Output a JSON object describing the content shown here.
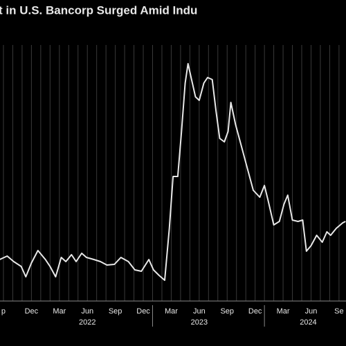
{
  "chart_data": {
    "type": "line",
    "title": "t in U.S. Bancorp Surged Amid Indu",
    "color": "#e8e8e8",
    "grid": true,
    "x": [
      -0.4,
      0.4,
      1.1,
      1.9,
      2.4,
      3.0,
      3.7,
      4.5,
      5.0,
      5.6,
      6.2,
      6.7,
      7.3,
      7.8,
      8.4,
      8.9,
      9.7,
      10.4,
      11.1,
      11.9,
      12.6,
      13.4,
      14.1,
      14.8,
      15.6,
      16.1,
      16.7,
      17.3,
      17.8,
      18.2,
      18.7,
      19.1,
      19.5,
      19.8,
      20.1,
      20.6,
      21.0,
      21.5,
      21.9,
      22.4,
      22.8,
      23.2,
      23.7,
      24.1,
      24.4,
      24.9,
      25.5,
      26.2,
      26.8,
      27.5,
      28.0,
      28.4,
      29.0,
      29.6,
      30.1,
      30.5,
      31.0,
      31.6,
      32.1,
      32.5,
      33.0,
      33.6,
      34.2,
      34.7,
      35.1,
      35.7,
      36.4,
      36.7
    ],
    "values": [
      60,
      65,
      57,
      50,
      35,
      55,
      73,
      60,
      50,
      35,
      63,
      57,
      67,
      57,
      69,
      63,
      60,
      57,
      52,
      53,
      63,
      57,
      45,
      43,
      60,
      45,
      37,
      30,
      105,
      180,
      180,
      245,
      315,
      343,
      325,
      295,
      290,
      315,
      323,
      320,
      275,
      235,
      230,
      245,
      287,
      255,
      225,
      190,
      160,
      150,
      167,
      145,
      110,
      115,
      140,
      153,
      117,
      115,
      117,
      72,
      80,
      95,
      85,
      100,
      95,
      105,
      113,
      115
    ],
    "xlim": [
      -0.37,
      36.75
    ],
    "ylim": [
      0,
      370
    ],
    "xticks": [
      {
        "value": 0,
        "label": "p"
      },
      {
        "value": 3,
        "label": "Dec"
      },
      {
        "value": 6,
        "label": "Mar"
      },
      {
        "value": 9,
        "label": "Jun"
      },
      {
        "value": 12,
        "label": "Sep"
      },
      {
        "value": 15,
        "label": "Dec"
      },
      {
        "value": 18,
        "label": "Mar"
      },
      {
        "value": 21,
        "label": "Jun"
      },
      {
        "value": 24,
        "label": "Sep"
      },
      {
        "value": 27,
        "label": "Dec"
      },
      {
        "value": 30,
        "label": "Mar"
      },
      {
        "value": 33,
        "label": "Jun"
      },
      {
        "value": 36,
        "label": "Se"
      }
    ],
    "minor_xticks": [
      1,
      2,
      4,
      5,
      7,
      8,
      10,
      11,
      13,
      14,
      16,
      17,
      19,
      20,
      22,
      23,
      25,
      26,
      28,
      29,
      31,
      32,
      34,
      35
    ],
    "years": [
      {
        "value": 9,
        "label": "2022"
      },
      {
        "value": 21,
        "label": "2023"
      },
      {
        "value": 32.7,
        "label": "2024"
      }
    ],
    "year_breaks": [
      16,
      28
    ]
  }
}
